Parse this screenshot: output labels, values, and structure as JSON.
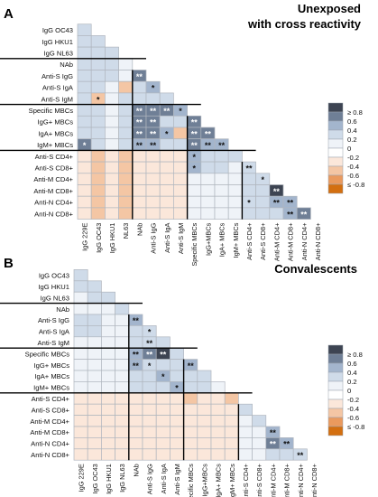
{
  "colors": {
    "scale": [
      "#d36f10",
      "#ea9a5e",
      "#f4c6a4",
      "#fbe7da",
      "#ffffff",
      "#eff3f8",
      "#cfdbe9",
      "#a3b5cd",
      "#6f7f96",
      "#3d4452"
    ],
    "grid_line": "#b0b6be",
    "block_line": "#000000",
    "empty_cell": "#ffffff"
  },
  "chart_data": [
    {
      "type": "heatmap",
      "panel_letter": "A",
      "title": "Unexposed",
      "subtitle": "with cross reactivity",
      "variables": [
        "IgG 229E",
        "IgG OC43",
        "IgG HKU1",
        "IgG NL63",
        "NAb",
        "Anti-S IgG",
        "Anti-S IgA",
        "Anti-S IgM",
        "Specific MBCs",
        "IgG+ MBCs",
        "IgA+ MBCs",
        "IgM+ MBCs",
        "Anti-S CD4+",
        "Anti-S CD8+",
        "Anti-M CD4+",
        "Anti-M CD8+",
        "Anti-N CD4+",
        "Anti-N CD8+"
      ],
      "x_tick_labels": [
        "IgG 229E",
        "IgG OC43",
        "IgG HKU1",
        "NL63",
        "NAb",
        "Anti-S IgG",
        "Anti-S IgA",
        "Anti-S IgM",
        "Specific MBCs",
        "IgG+MBCs",
        "IgA+ MBCs",
        "IgM+ MBCs",
        "Anti-S CD4+",
        "Anti-S CD8+",
        "Anti-M CD4+",
        "Anti-M CD8+",
        "Anti-N CD4+",
        "Anti-N CD8+"
      ],
      "group_boundaries": [
        4,
        8,
        12
      ],
      "matrix": [
        [
          0.3
        ],
        [
          0.3,
          0.3
        ],
        [
          0.2,
          0.3,
          0.2
        ],
        [
          0.2,
          0.2,
          0.2,
          0.1
        ],
        [
          0.2,
          0.3,
          0.2,
          0.1,
          0.6
        ],
        [
          0.2,
          0.3,
          0.1,
          -0.2,
          0.2,
          0.4
        ],
        [
          0.2,
          -0.3,
          0.1,
          0.2,
          0.2,
          0.3,
          0.3
        ],
        [
          0.2,
          0.3,
          0.1,
          0.2,
          0.7,
          0.7,
          0.6,
          0.4
        ],
        [
          0.2,
          0.3,
          0.1,
          0.2,
          0.7,
          0.7,
          0.3,
          0.2,
          0.7
        ],
        [
          0.2,
          0.3,
          0.1,
          0.2,
          0.7,
          0.7,
          0.4,
          -0.2,
          0.7,
          0.7
        ],
        [
          0.7,
          0.3,
          0.1,
          0.2,
          0.5,
          0.5,
          0.2,
          0.3,
          0.6,
          0.5,
          0.5
        ],
        [
          -0.1,
          -0.2,
          -0.1,
          -0.2,
          -0.1,
          -0.1,
          -0.1,
          -0.1,
          0.4,
          0.2,
          0.3,
          0.2
        ],
        [
          -0.1,
          -0.2,
          -0.1,
          -0.2,
          -0.1,
          -0.1,
          -0.1,
          -0.1,
          0.5,
          0.2,
          0.2,
          0.1,
          0.3
        ],
        [
          -0.1,
          -0.2,
          -0.1,
          -0.2,
          -0.1,
          -0.1,
          -0.1,
          -0.1,
          0.1,
          0.1,
          0.1,
          0.1,
          0.2,
          0.2
        ],
        [
          -0.1,
          -0.2,
          -0.1,
          -0.2,
          -0.1,
          -0.1,
          -0.1,
          -0.1,
          0.1,
          0.1,
          0.1,
          0.1,
          0.2,
          0.2,
          0.9
        ],
        [
          -0.1,
          -0.2,
          -0.1,
          -0.2,
          -0.1,
          -0.1,
          -0.1,
          -0.1,
          0.1,
          0.1,
          0.1,
          0.1,
          0.2,
          0.3,
          0.5,
          0.5
        ],
        [
          -0.1,
          -0.2,
          -0.1,
          -0.2,
          -0.1,
          -0.1,
          -0.1,
          -0.1,
          0.1,
          0.1,
          0.1,
          0.1,
          0.2,
          0.2,
          0.3,
          0.5,
          0.6
        ]
      ],
      "significance": [
        [
          ""
        ],
        [
          "",
          ""
        ],
        [
          "",
          "",
          ""
        ],
        [
          "",
          "",
          "",
          ""
        ],
        [
          "",
          "",
          "",
          "",
          "**"
        ],
        [
          "",
          "",
          "",
          "",
          "",
          "*"
        ],
        [
          "",
          "*",
          "",
          "",
          "",
          "",
          ""
        ],
        [
          "",
          "",
          "",
          "",
          "**",
          "**",
          "**",
          "*"
        ],
        [
          "",
          "",
          "",
          "",
          "**",
          "**",
          "",
          "",
          "**"
        ],
        [
          "",
          "",
          "",
          "",
          "**",
          "**",
          "*",
          "",
          "**",
          "**"
        ],
        [
          "*",
          "",
          "",
          "",
          "**",
          "**",
          "",
          "",
          "**",
          "**",
          "**"
        ],
        [
          "",
          "",
          "",
          "",
          "",
          "",
          "",
          "",
          "*",
          "",
          "",
          ""
        ],
        [
          "",
          "",
          "",
          "",
          "",
          "",
          "",
          "",
          "*",
          "",
          "",
          "",
          "**"
        ],
        [
          "",
          "",
          "",
          "",
          "",
          "",
          "",
          "",
          "",
          "",
          "",
          "",
          "",
          "*"
        ],
        [
          "",
          "",
          "",
          "",
          "",
          "",
          "",
          "",
          "",
          "",
          "",
          "",
          "",
          "",
          "**"
        ],
        [
          "",
          "",
          "",
          "",
          "",
          "",
          "",
          "",
          "",
          "",
          "",
          "",
          "*",
          "",
          "**",
          "**"
        ],
        [
          "",
          "",
          "",
          "",
          "",
          "",
          "",
          "",
          "",
          "",
          "",
          "",
          "",
          "",
          "",
          "**",
          "**"
        ]
      ],
      "legend": {
        "ticks": [
          "≥ 0.8",
          "0.6",
          "0.4",
          "0.2",
          "0",
          "-0.2",
          "-0.4",
          "-0.6",
          "≤ -0.8"
        ]
      }
    },
    {
      "type": "heatmap",
      "panel_letter": "B",
      "title": "Convalescents",
      "variables": [
        "IgG 229E",
        "IgG OC43",
        "IgG HKU1",
        "IgG NL63",
        "NAb",
        "Anti-S IgG",
        "Anti-S IgA",
        "Anti-S IgM",
        "Specific MBCs",
        "IgG+ MBCs",
        "IgA+ MBCs",
        "IgM+ MBCs",
        "Anti-S CD4+",
        "Anti-S CD8+",
        "Anti-M CD4+",
        "Anti-M CD8+",
        "Anti-N CD4+",
        "Anti-N CD8+"
      ],
      "x_tick_labels": [
        "IgG 229E",
        "IgG OC43",
        "IgG HKU1",
        "IgG NL63",
        "NAb",
        "Anti-S IgG",
        "Anti-S IgA",
        "Anti-S IgM",
        "Specific MBCs",
        "IgG+MBCs",
        "IgA+ MBCs",
        "IgM+ MBCs",
        "Anti-S CD4+",
        "Anti-S CD8+",
        "Anti-M CD4+",
        "Anti-M CD8+",
        "Anti-N CD4+",
        "Anti-N CD8+"
      ],
      "group_boundaries": [
        4,
        8,
        12
      ],
      "matrix": [
        [
          0.2
        ],
        [
          0.2,
          0.2
        ],
        [
          0.1,
          0.2,
          0.2
        ],
        [
          0.1,
          0.1,
          0.1,
          0.2
        ],
        [
          0.2,
          0.2,
          0.1,
          0.1,
          0.4
        ],
        [
          0.2,
          0.2,
          0.1,
          0.1,
          0.2,
          0.2
        ],
        [
          0.1,
          0.1,
          0.1,
          0.1,
          0.2,
          0.3,
          0.2
        ],
        [
          0.1,
          0.1,
          0.1,
          0.1,
          0.5,
          0.7,
          0.9,
          0.2
        ],
        [
          0.1,
          0.1,
          0.1,
          0.1,
          0.4,
          0.3,
          0.3,
          0.3,
          0.5
        ],
        [
          0.1,
          0.1,
          0.1,
          0.1,
          0.2,
          0.3,
          0.4,
          0.2,
          0.2,
          0.2
        ],
        [
          0.1,
          0.1,
          0.1,
          0.1,
          0.2,
          0.2,
          0.3,
          0.4,
          0.3,
          0.2,
          0.1
        ],
        [
          -0.1,
          -0.1,
          -0.1,
          -0.1,
          -0.1,
          -0.1,
          -0.1,
          -0.1,
          -0.2,
          -0.1,
          -0.1,
          -0.2,
          0.2
        ],
        [
          -0.1,
          -0.1,
          -0.1,
          -0.1,
          -0.1,
          -0.1,
          -0.1,
          -0.1,
          -0.1,
          -0.1,
          -0.1,
          -0.1,
          0.2,
          0.2
        ],
        [
          -0.1,
          -0.1,
          -0.1,
          -0.1,
          -0.1,
          -0.1,
          -0.1,
          -0.1,
          -0.1,
          -0.1,
          -0.1,
          -0.1,
          0.1,
          0.2,
          0.2
        ],
        [
          -0.1,
          -0.1,
          -0.1,
          -0.1,
          -0.1,
          -0.1,
          -0.1,
          -0.1,
          -0.1,
          -0.1,
          -0.1,
          -0.1,
          0.1,
          0.1,
          0.5,
          0.2
        ],
        [
          -0.1,
          -0.1,
          -0.1,
          -0.1,
          -0.1,
          -0.1,
          -0.1,
          -0.1,
          -0.1,
          -0.1,
          -0.1,
          -0.1,
          0.1,
          0.1,
          0.6,
          0.4,
          0.2
        ],
        [
          -0.1,
          -0.1,
          -0.1,
          -0.1,
          -0.1,
          -0.1,
          -0.1,
          -0.1,
          -0.1,
          -0.1,
          -0.1,
          -0.1,
          0.1,
          0.1,
          0.2,
          0.2,
          0.2,
          0.2
        ]
      ],
      "significance": [
        [
          ""
        ],
        [
          "",
          ""
        ],
        [
          "",
          "",
          ""
        ],
        [
          "",
          "",
          "",
          ""
        ],
        [
          "",
          "",
          "",
          "",
          "**"
        ],
        [
          "",
          "",
          "",
          "",
          "",
          "*"
        ],
        [
          "",
          "",
          "",
          "",
          "",
          "**",
          ""
        ],
        [
          "",
          "",
          "",
          "",
          "**",
          "**",
          "**",
          ""
        ],
        [
          "",
          "",
          "",
          "",
          "**",
          "*",
          "",
          "",
          "**"
        ],
        [
          "",
          "",
          "",
          "",
          "",
          "",
          "*",
          "",
          "",
          ""
        ],
        [
          "",
          "",
          "",
          "",
          "",
          "",
          "",
          "*",
          "",
          "",
          ""
        ],
        [
          "",
          "",
          "",
          "",
          "",
          "",
          "",
          "",
          "",
          "",
          "",
          "",
          "**"
        ],
        [
          "",
          "",
          "",
          "",
          "",
          "",
          "",
          "",
          "",
          "",
          "",
          "",
          "",
          ""
        ],
        [
          "",
          "",
          "",
          "",
          "",
          "",
          "",
          "",
          "",
          "",
          "",
          "",
          "",
          "",
          ""
        ],
        [
          "",
          "",
          "",
          "",
          "",
          "",
          "",
          "",
          "",
          "",
          "",
          "",
          "",
          "",
          "**",
          ""
        ],
        [
          "",
          "",
          "",
          "",
          "",
          "",
          "",
          "",
          "",
          "",
          "",
          "",
          "",
          "",
          "**",
          "**",
          ""
        ],
        [
          "",
          "",
          "",
          "",
          "",
          "",
          "",
          "",
          "",
          "",
          "",
          "",
          "",
          "",
          "",
          "",
          "**",
          "**"
        ]
      ],
      "legend": {
        "ticks": [
          "≥ 0.8",
          "0.6",
          "0.4",
          "0.2",
          "0",
          "-0.2",
          "-0.4",
          "-0.6",
          "≤ -0.8"
        ]
      }
    }
  ]
}
